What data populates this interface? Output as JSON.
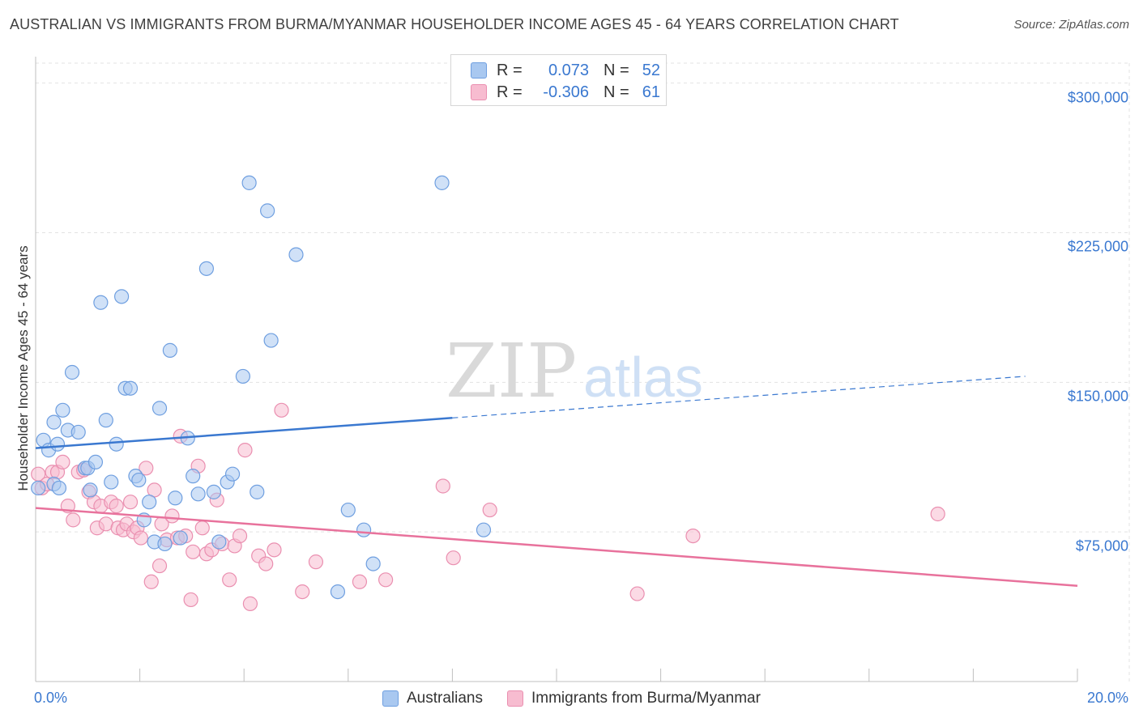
{
  "title": "AUSTRALIAN VS IMMIGRANTS FROM BURMA/MYANMAR HOUSEHOLDER INCOME AGES 45 - 64 YEARS CORRELATION CHART",
  "source": "Source: ZipAtlas.com",
  "watermark": {
    "zip": "ZIP",
    "atlas": "atlas"
  },
  "legend": {
    "rows": [
      {
        "r_label": "R =",
        "r_value": "0.073",
        "n_label": "N =",
        "n_value": "52"
      },
      {
        "r_label": "R =",
        "r_value": "-0.306",
        "n_label": "N =",
        "n_value": "61"
      }
    ]
  },
  "colors": {
    "australians_fill": "#a9c8f0",
    "australians_stroke": "#6f9fe0",
    "australians_line": "#3a78d0",
    "burma_fill": "#f7bcd0",
    "burma_stroke": "#ea8fb0",
    "burma_line": "#e8729c",
    "tick_label": "#3a78d0",
    "grid": "#e3e3e3"
  },
  "chart_data": {
    "type": "scatter",
    "title": "AUSTRALIAN VS IMMIGRANTS FROM BURMA/MYANMAR HOUSEHOLDER INCOME AGES 45 - 64 YEARS CORRELATION CHART",
    "xlabel": "",
    "ylabel": "Householder Income Ages 45 - 64 years",
    "xlim": [
      0,
      20
    ],
    "ylim": [
      0,
      310000
    ],
    "x_tick_labels": [
      "0.0%",
      "20.0%"
    ],
    "y_ticks": [
      75000,
      150000,
      225000,
      300000
    ],
    "y_tick_labels": [
      "$75,000",
      "$150,000",
      "$225,000",
      "$300,000"
    ],
    "grid": true,
    "legend_placement": "bottom",
    "series": [
      {
        "name": "Australians",
        "r": 0.073,
        "n": 52,
        "trend": {
          "x0": 0,
          "y0": 117000,
          "x_solid_end": 8.0,
          "x1": 19.0,
          "y1": 153000
        },
        "points": [
          [
            0.05,
            97000
          ],
          [
            0.15,
            121000
          ],
          [
            0.25,
            116000
          ],
          [
            0.35,
            130000
          ],
          [
            0.42,
            119000
          ],
          [
            0.52,
            136000
          ],
          [
            0.62,
            126000
          ],
          [
            0.7,
            155000
          ],
          [
            0.82,
            125000
          ],
          [
            0.95,
            107000
          ],
          [
            1.0,
            107000
          ],
          [
            1.05,
            96000
          ],
          [
            1.15,
            110000
          ],
          [
            1.25,
            190000
          ],
          [
            1.35,
            131000
          ],
          [
            1.45,
            100000
          ],
          [
            1.55,
            119000
          ],
          [
            1.65,
            193000
          ],
          [
            1.72,
            147000
          ],
          [
            1.82,
            147000
          ],
          [
            1.92,
            103000
          ],
          [
            1.98,
            101000
          ],
          [
            2.08,
            81000
          ],
          [
            2.18,
            90000
          ],
          [
            2.28,
            70000
          ],
          [
            2.38,
            137000
          ],
          [
            2.48,
            69000
          ],
          [
            2.58,
            166000
          ],
          [
            2.68,
            92000
          ],
          [
            2.78,
            72000
          ],
          [
            2.92,
            122000
          ],
          [
            3.02,
            103000
          ],
          [
            3.12,
            94000
          ],
          [
            3.28,
            207000
          ],
          [
            3.42,
            95000
          ],
          [
            3.52,
            70000
          ],
          [
            3.68,
            100000
          ],
          [
            3.78,
            104000
          ],
          [
            3.98,
            153000
          ],
          [
            4.1,
            250000
          ],
          [
            4.25,
            95000
          ],
          [
            4.45,
            236000
          ],
          [
            4.52,
            171000
          ],
          [
            5.0,
            214000
          ],
          [
            5.8,
            45000
          ],
          [
            6.0,
            86000
          ],
          [
            6.3,
            76000
          ],
          [
            6.48,
            59000
          ],
          [
            7.8,
            250000
          ],
          [
            8.6,
            76000
          ],
          [
            0.35,
            99000
          ],
          [
            0.45,
            97000
          ]
        ]
      },
      {
        "name": "Immigrants from Burma/Myanmar",
        "r": -0.306,
        "n": 61,
        "trend": {
          "x0": 0,
          "y0": 87000,
          "x1": 20,
          "y1": 48000
        },
        "points": [
          [
            0.05,
            104000
          ],
          [
            0.12,
            97000
          ],
          [
            0.22,
            99000
          ],
          [
            0.32,
            105000
          ],
          [
            0.42,
            105000
          ],
          [
            0.52,
            110000
          ],
          [
            0.62,
            88000
          ],
          [
            0.72,
            81000
          ],
          [
            0.82,
            105000
          ],
          [
            0.92,
            106000
          ],
          [
            1.02,
            95000
          ],
          [
            1.12,
            90000
          ],
          [
            1.18,
            77000
          ],
          [
            1.25,
            88000
          ],
          [
            1.35,
            79000
          ],
          [
            1.45,
            90000
          ],
          [
            1.55,
            88000
          ],
          [
            1.58,
            77000
          ],
          [
            1.68,
            76000
          ],
          [
            1.75,
            79000
          ],
          [
            1.82,
            90000
          ],
          [
            1.88,
            75000
          ],
          [
            1.95,
            77000
          ],
          [
            2.02,
            72000
          ],
          [
            2.12,
            107000
          ],
          [
            2.22,
            50000
          ],
          [
            2.28,
            96000
          ],
          [
            2.38,
            58000
          ],
          [
            2.42,
            79000
          ],
          [
            2.52,
            71000
          ],
          [
            2.62,
            83000
          ],
          [
            2.72,
            72000
          ],
          [
            2.78,
            123000
          ],
          [
            2.88,
            73000
          ],
          [
            2.98,
            41000
          ],
          [
            3.02,
            65000
          ],
          [
            3.12,
            108000
          ],
          [
            3.2,
            77000
          ],
          [
            3.28,
            64000
          ],
          [
            3.38,
            66000
          ],
          [
            3.48,
            91000
          ],
          [
            3.58,
            69000
          ],
          [
            3.72,
            51000
          ],
          [
            3.82,
            68000
          ],
          [
            3.92,
            73000
          ],
          [
            4.02,
            116000
          ],
          [
            4.12,
            39000
          ],
          [
            4.28,
            63000
          ],
          [
            4.42,
            59000
          ],
          [
            4.58,
            66000
          ],
          [
            4.72,
            136000
          ],
          [
            5.12,
            45000
          ],
          [
            5.38,
            60000
          ],
          [
            6.22,
            50000
          ],
          [
            6.72,
            51000
          ],
          [
            7.82,
            98000
          ],
          [
            8.02,
            62000
          ],
          [
            8.72,
            86000
          ],
          [
            11.55,
            44000
          ],
          [
            12.62,
            73000
          ],
          [
            17.32,
            84000
          ]
        ]
      }
    ]
  }
}
